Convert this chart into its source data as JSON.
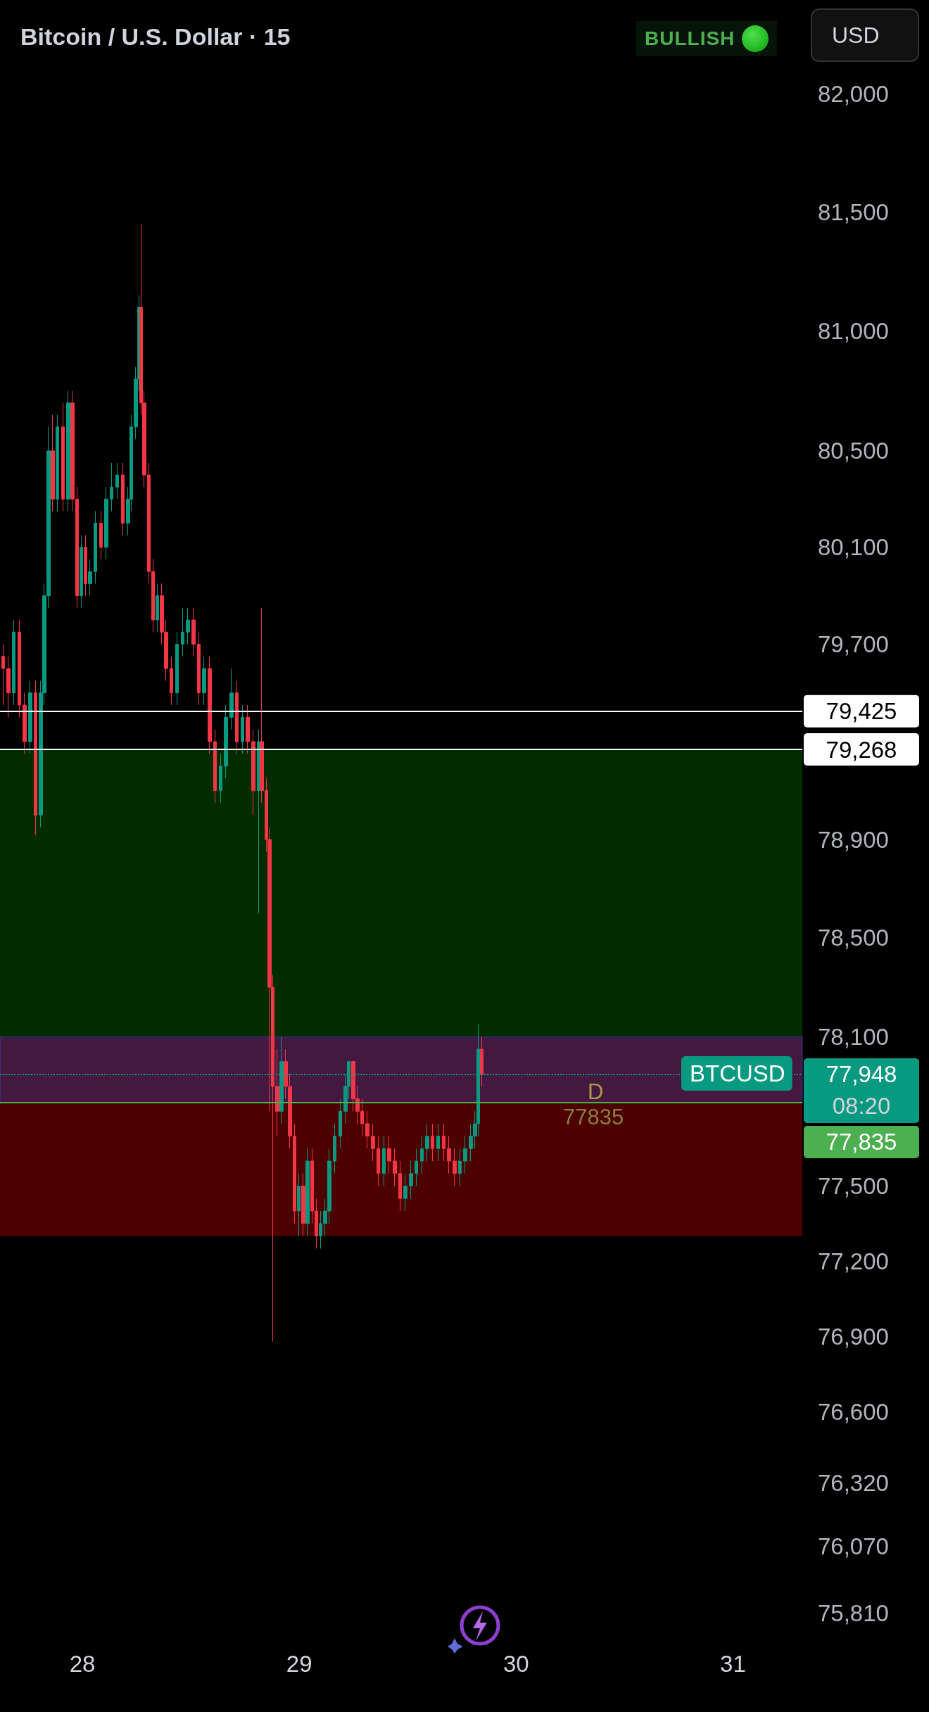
{
  "chart_data": {
    "type": "candlestick",
    "title": "Bitcoin / U.S. Dollar · 15",
    "x": [
      27.634,
      27.659,
      27.684,
      27.709,
      27.734,
      27.759,
      27.784,
      27.809,
      27.824,
      27.844,
      27.864,
      27.885,
      27.91,
      27.935,
      27.955,
      27.975,
      27.995,
      28.015,
      28.035,
      28.06,
      28.085,
      28.11,
      28.135,
      28.16,
      28.186,
      28.211,
      28.226,
      28.246,
      28.261,
      28.271,
      28.286,
      28.306,
      28.326,
      28.346,
      28.366,
      28.386,
      28.411,
      28.437,
      28.462,
      28.487,
      28.512,
      28.537,
      28.562,
      28.587,
      28.612,
      28.637,
      28.662,
      28.687,
      28.712,
      28.738,
      28.763,
      28.788,
      28.813,
      28.828,
      28.848,
      28.863,
      28.878,
      28.898,
      28.918,
      28.938,
      28.958,
      28.978,
      28.998,
      29.019,
      29.039,
      29.059,
      29.079,
      29.099,
      29.119,
      29.139,
      29.164,
      29.189,
      29.214,
      29.229,
      29.249,
      29.269,
      29.29,
      29.315,
      29.34,
      29.365,
      29.39,
      29.415,
      29.44,
      29.465,
      29.49,
      29.515,
      29.54,
      29.565,
      29.59,
      29.615,
      29.641,
      29.666,
      29.691,
      29.716,
      29.741,
      29.766,
      29.791,
      29.811,
      29.826,
      29.841
    ],
    "ohlc": [
      [
        79650,
        79700,
        79450,
        79600
      ],
      [
        79600,
        79650,
        79400,
        79500
      ],
      [
        79500,
        79800,
        79450,
        79750
      ],
      [
        79750,
        79800,
        79400,
        79450
      ],
      [
        79450,
        79500,
        79250,
        79300
      ],
      [
        79300,
        79550,
        79250,
        79500
      ],
      [
        79500,
        79550,
        78920,
        79000
      ],
      [
        79000,
        79550,
        78950,
        79500
      ],
      [
        79500,
        79950,
        79450,
        79900
      ],
      [
        79900,
        80600,
        79850,
        80500
      ],
      [
        80500,
        80650,
        80250,
        80300
      ],
      [
        80300,
        80650,
        80250,
        80600
      ],
      [
        80600,
        80700,
        80250,
        80300
      ],
      [
        80300,
        80750,
        80250,
        80700
      ],
      [
        80700,
        80750,
        80250,
        80300
      ],
      [
        80300,
        80350,
        79850,
        79900
      ],
      [
        79900,
        80150,
        79850,
        80100
      ],
      [
        80100,
        80150,
        79900,
        79950
      ],
      [
        79950,
        80050,
        79900,
        80000
      ],
      [
        80000,
        80250,
        79950,
        80200
      ],
      [
        80200,
        80250,
        80050,
        80100
      ],
      [
        80100,
        80350,
        80050,
        80300
      ],
      [
        80300,
        80450,
        80250,
        80350
      ],
      [
        80350,
        80450,
        80300,
        80400
      ],
      [
        80400,
        80450,
        80150,
        80200
      ],
      [
        80200,
        80350,
        80150,
        80300
      ],
      [
        80300,
        80650,
        80250,
        80600
      ],
      [
        80600,
        80850,
        80550,
        80800
      ],
      [
        80800,
        81150,
        80750,
        81100
      ],
      [
        81100,
        81450,
        80650,
        80700
      ],
      [
        80700,
        80750,
        80350,
        80400
      ],
      [
        80400,
        80450,
        79950,
        80000
      ],
      [
        80000,
        80050,
        79750,
        79800
      ],
      [
        79800,
        79950,
        79750,
        79900
      ],
      [
        79900,
        79950,
        79700,
        79750
      ],
      [
        79750,
        79800,
        79550,
        79600
      ],
      [
        79600,
        79650,
        79450,
        79500
      ],
      [
        79500,
        79750,
        79450,
        79700
      ],
      [
        79700,
        79850,
        79650,
        79750
      ],
      [
        79750,
        79850,
        79700,
        79800
      ],
      [
        79800,
        79850,
        79650,
        79700
      ],
      [
        79700,
        79750,
        79450,
        79500
      ],
      [
        79500,
        79650,
        79450,
        79600
      ],
      [
        79600,
        79650,
        79250,
        79300
      ],
      [
        79300,
        79350,
        79050,
        79100
      ],
      [
        79100,
        79250,
        79050,
        79200
      ],
      [
        79200,
        79450,
        79150,
        79400
      ],
      [
        79400,
        79600,
        79350,
        79500
      ],
      [
        79500,
        79550,
        79250,
        79300
      ],
      [
        79300,
        79450,
        79250,
        79400
      ],
      [
        79400,
        79450,
        79250,
        79300
      ],
      [
        79300,
        79350,
        79000,
        79100
      ],
      [
        79100,
        79350,
        78600,
        79300
      ],
      [
        79300,
        79850,
        79050,
        79100
      ],
      [
        79100,
        79150,
        78850,
        78900
      ],
      [
        78900,
        78950,
        77800,
        78300
      ],
      [
        78300,
        78350,
        76880,
        77900
      ],
      [
        77900,
        78050,
        77700,
        77800
      ],
      [
        77800,
        78100,
        77750,
        78000
      ],
      [
        78000,
        78050,
        77850,
        77900
      ],
      [
        77900,
        77950,
        77650,
        77700
      ],
      [
        77700,
        77750,
        77350,
        77400
      ],
      [
        77400,
        77550,
        77300,
        77500
      ],
      [
        77500,
        77550,
        77300,
        77350
      ],
      [
        77350,
        77650,
        77300,
        77600
      ],
      [
        77600,
        77650,
        77350,
        77400
      ],
      [
        77400,
        77450,
        77250,
        77300
      ],
      [
        77300,
        77400,
        77250,
        77350
      ],
      [
        77350,
        77450,
        77300,
        77400
      ],
      [
        77400,
        77650,
        77350,
        77600
      ],
      [
        77600,
        77750,
        77550,
        77700
      ],
      [
        77700,
        77850,
        77650,
        77800
      ],
      [
        77800,
        77950,
        77750,
        77900
      ],
      [
        77900,
        78000,
        77850,
        78000
      ],
      [
        78000,
        78000,
        77800,
        77850
      ],
      [
        77850,
        77900,
        77750,
        77800
      ],
      [
        77800,
        77850,
        77700,
        77750
      ],
      [
        77750,
        77800,
        77650,
        77700
      ],
      [
        77700,
        77750,
        77600,
        77650
      ],
      [
        77650,
        77700,
        77500,
        77550
      ],
      [
        77550,
        77700,
        77500,
        77650
      ],
      [
        77650,
        77700,
        77550,
        77600
      ],
      [
        77600,
        77650,
        77500,
        77550
      ],
      [
        77550,
        77600,
        77400,
        77450
      ],
      [
        77450,
        77550,
        77400,
        77500
      ],
      [
        77500,
        77600,
        77450,
        77550
      ],
      [
        77550,
        77650,
        77500,
        77600
      ],
      [
        77600,
        77700,
        77550,
        77650
      ],
      [
        77650,
        77750,
        77600,
        77700
      ],
      [
        77700,
        77750,
        77600,
        77650
      ],
      [
        77650,
        77750,
        77600,
        77700
      ],
      [
        77700,
        77750,
        77600,
        77650
      ],
      [
        77650,
        77700,
        77550,
        77600
      ],
      [
        77600,
        77650,
        77500,
        77550
      ],
      [
        77550,
        77650,
        77500,
        77600
      ],
      [
        77600,
        77700,
        77550,
        77650
      ],
      [
        77650,
        77750,
        77600,
        77700
      ],
      [
        77700,
        77800,
        77650,
        77750
      ],
      [
        77750,
        78150,
        77700,
        78050
      ],
      [
        78050,
        78100,
        77900,
        77948
      ]
    ],
    "colors": [
      "#f23645",
      "#f23645",
      "#089981",
      "#f23645",
      "#f23645",
      "#089981",
      "#f23645",
      "#089981",
      "#089981",
      "#089981",
      "#f23645",
      "#089981",
      "#f23645",
      "#089981",
      "#f23645",
      "#f23645",
      "#089981",
      "#f23645",
      "#089981",
      "#089981",
      "#f23645",
      "#089981",
      "#089981",
      "#089981",
      "#f23645",
      "#089981",
      "#089981",
      "#089981",
      "#089981",
      "#f23645",
      "#f23645",
      "#f23645",
      "#f23645",
      "#089981",
      "#f23645",
      "#f23645",
      "#f23645",
      "#089981",
      "#089981",
      "#089981",
      "#f23645",
      "#f23645",
      "#089981",
      "#f23645",
      "#f23645",
      "#089981",
      "#089981",
      "#089981",
      "#f23645",
      "#089981",
      "#f23645",
      "#f23645",
      "#089981",
      "#f23645",
      "#f23645",
      "#f23645",
      "#f23645",
      "#f23645",
      "#089981",
      "#f23645",
      "#f23645",
      "#f23645",
      "#089981",
      "#f23645",
      "#089981",
      "#f23645",
      "#f23645",
      "#089981",
      "#089981",
      "#089981",
      "#089981",
      "#089981",
      "#089981",
      "#089981",
      "#f23645",
      "#f23645",
      "#f23645",
      "#f23645",
      "#f23645",
      "#f23645",
      "#089981",
      "#f23645",
      "#f23645",
      "#f23645",
      "#089981",
      "#089981",
      "#089981",
      "#089981",
      "#089981",
      "#f23645",
      "#089981",
      "#f23645",
      "#f23645",
      "#f23645",
      "#089981",
      "#089981",
      "#089981",
      "#089981",
      "#089981",
      "#f23645"
    ],
    "log": true,
    "xlim": [
      27.62,
      31.32
    ],
    "xticks": [
      28,
      29,
      30,
      31
    ],
    "ylim": [
      75810,
      82000
    ],
    "yticks": [
      {
        "value": 82000,
        "label": "82,000"
      },
      {
        "value": 81500,
        "label": "81,500"
      },
      {
        "value": 81000,
        "label": "81,000"
      },
      {
        "value": 80500,
        "label": "80,500"
      },
      {
        "value": 80100,
        "label": "80,100"
      },
      {
        "value": 79700,
        "label": "79,700"
      },
      {
        "value": 78900,
        "label": "78,900"
      },
      {
        "value": 78500,
        "label": "78,500"
      },
      {
        "value": 78100,
        "label": "78,100"
      },
      {
        "value": 77500,
        "label": "77,500"
      },
      {
        "value": 77200,
        "label": "77,200"
      },
      {
        "value": 76900,
        "label": "76,900"
      },
      {
        "value": 76600,
        "label": "76,600"
      },
      {
        "value": 76320,
        "label": "76,320"
      },
      {
        "value": 76070,
        "label": "76,070"
      },
      {
        "value": 75810,
        "label": "75,810"
      }
    ],
    "ref_lines": [
      {
        "axis": "y",
        "value": 79425,
        "label": "79,425",
        "color": "#ffffff"
      },
      {
        "axis": "y",
        "value": 79268,
        "label": "79,268",
        "color": "#ffffff"
      },
      {
        "axis": "y",
        "value": 77948,
        "label": "77,948",
        "color": "#089981",
        "line_style": "dotted"
      },
      {
        "axis": "y",
        "value": 77835,
        "label": "77,835",
        "color": "#4caf50"
      }
    ],
    "bands": [
      {
        "axis": "y",
        "from": 78100,
        "to": 79268,
        "color": "#005000"
      },
      {
        "axis": "y",
        "from": 77300,
        "to": 78100,
        "color": "#8b0000"
      },
      {
        "axis": "y",
        "from": 77835,
        "to": 78100,
        "color": "#2962ff"
      }
    ],
    "annotations": [
      "BULLISH",
      "USD",
      "D",
      "77835",
      "BTCUSD",
      "08:20"
    ]
  }
}
